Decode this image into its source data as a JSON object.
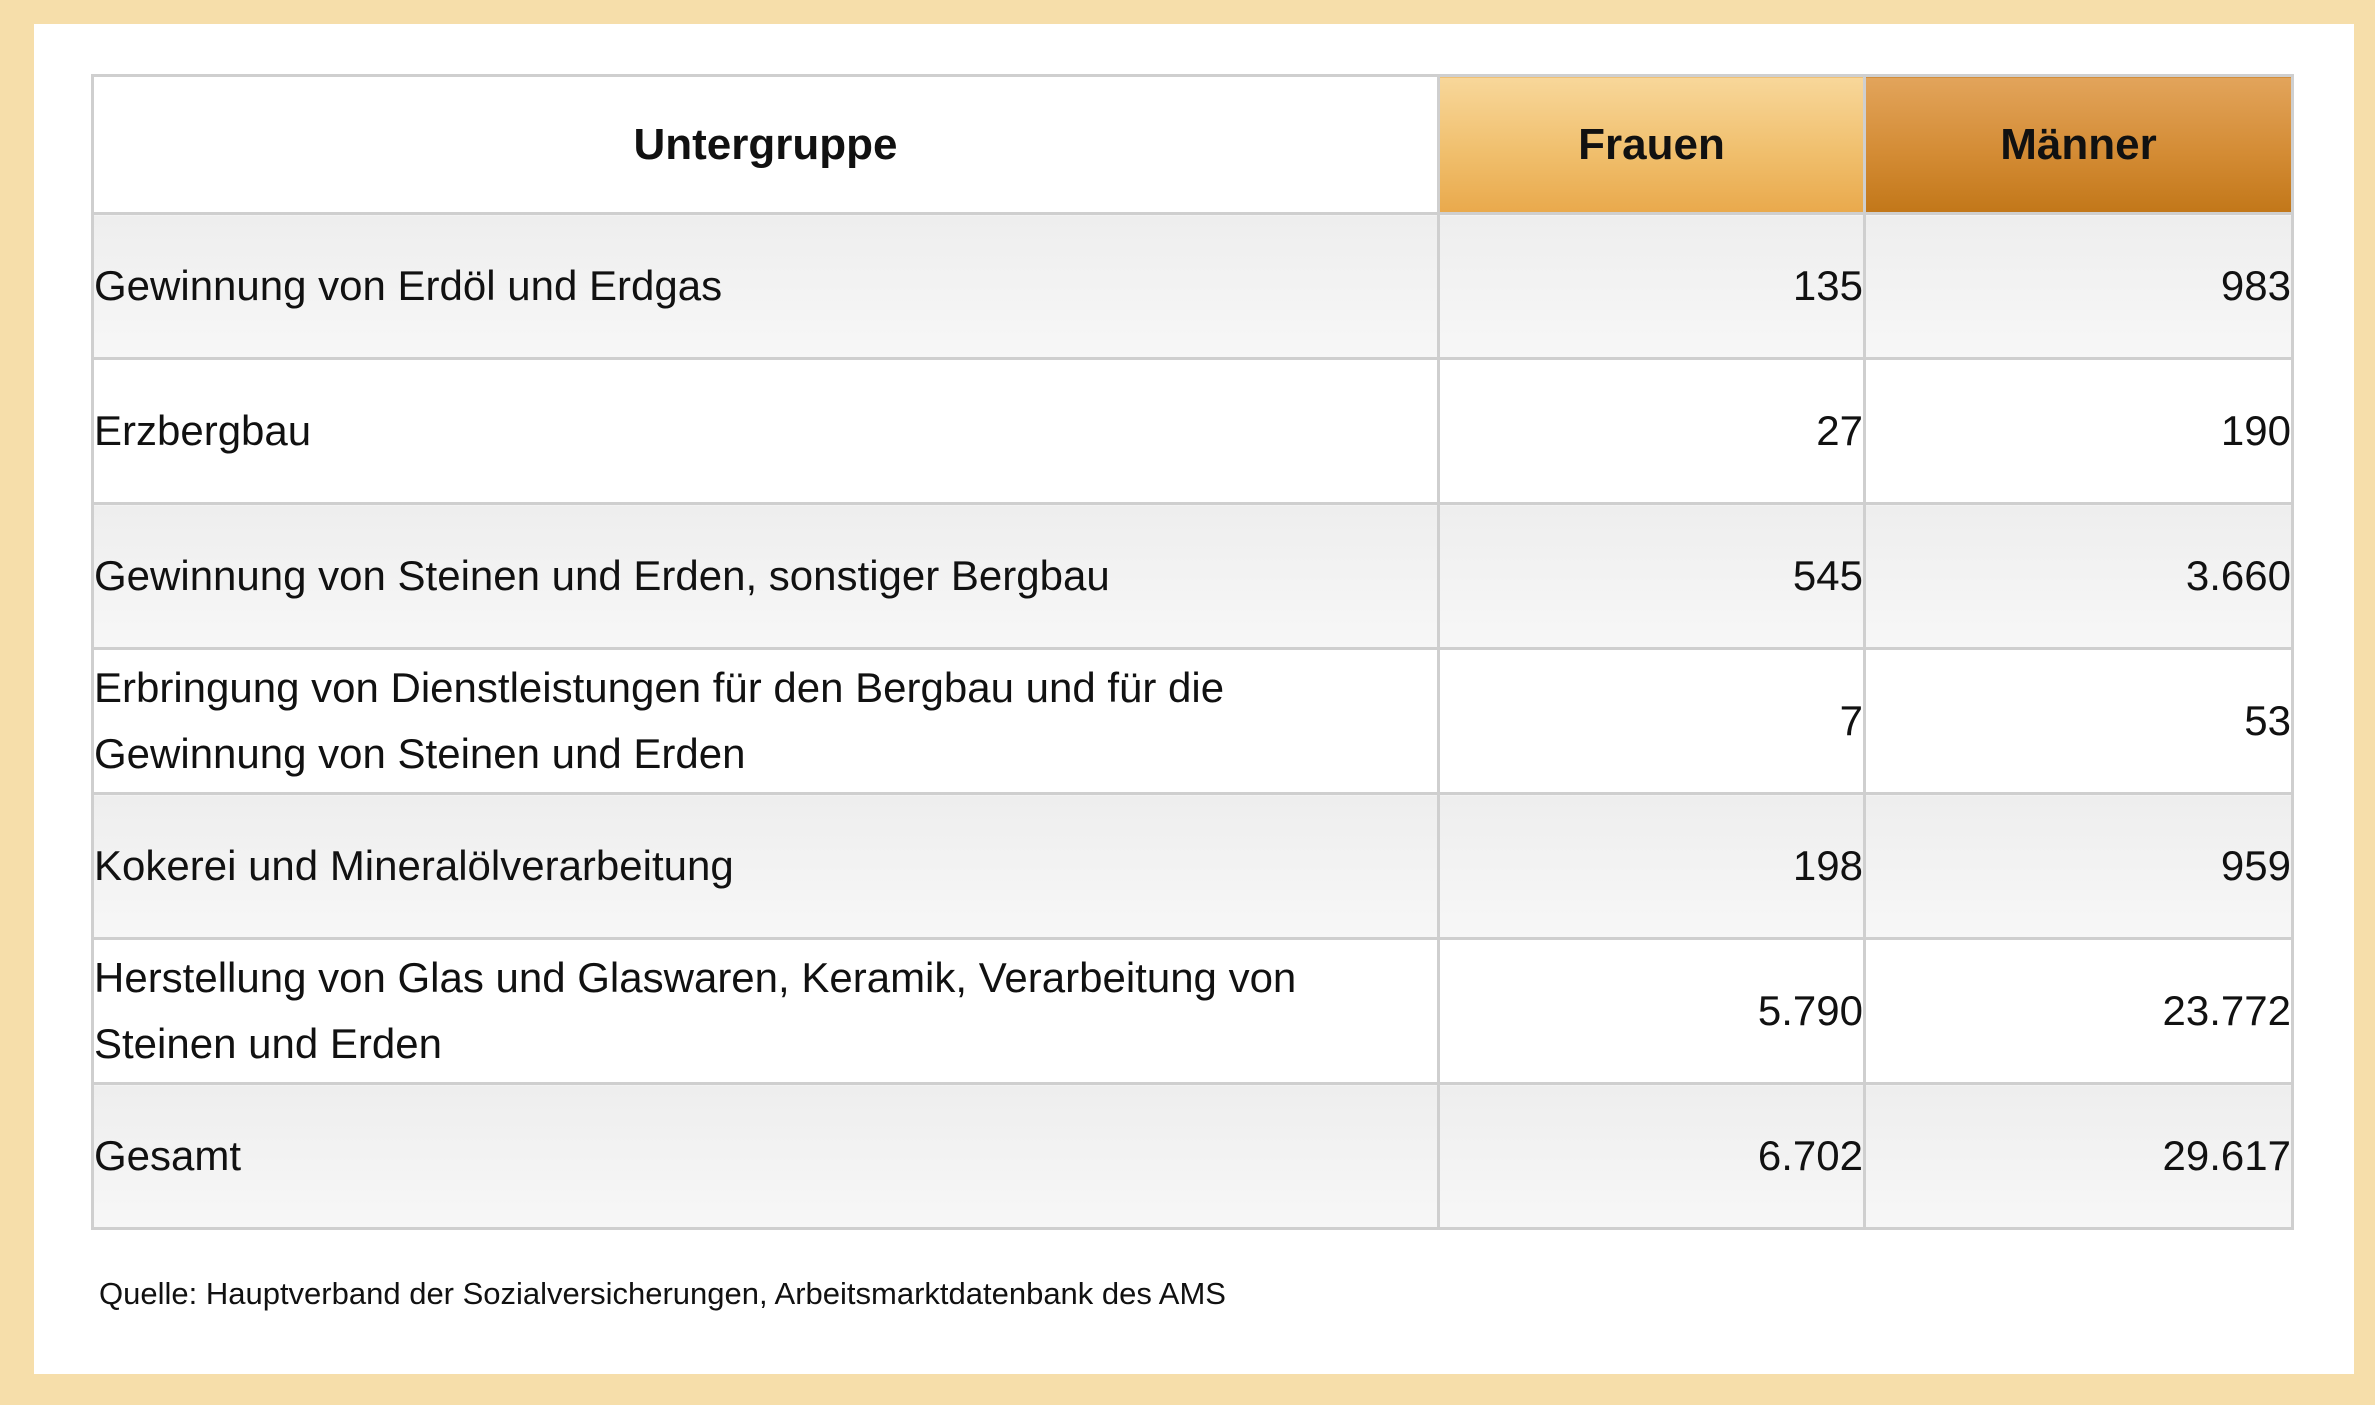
{
  "table": {
    "headers": {
      "label": "Untergruppe",
      "frauen": "Frauen",
      "maenner": "Männer"
    },
    "rows": [
      {
        "label": "Gewinnung von Erdöl und Erdgas",
        "frauen": "135",
        "maenner": "983"
      },
      {
        "label": "Erzbergbau",
        "frauen": "27",
        "maenner": "190"
      },
      {
        "label": "Gewinnung von Steinen und Erden, sonstiger Bergbau",
        "frauen": "545",
        "maenner": "3.660"
      },
      {
        "label": "Erbringung von Dienstleistungen für den Bergbau und für die Gewinnung von Steinen und Erden",
        "frauen": "7",
        "maenner": "53"
      },
      {
        "label": "Kokerei und Mineralölverarbeitung",
        "frauen": "198",
        "maenner": "959"
      },
      {
        "label": "Herstellung von Glas und Glaswaren, Keramik, Verarbeitung von Steinen und Erden",
        "frauen": "5.790",
        "maenner": "23.772"
      },
      {
        "label": "Gesamt",
        "frauen": "6.702",
        "maenner": "29.617"
      }
    ]
  },
  "source": "Quelle: Hauptverband der Sozialversicherungen, Arbeitsmarktdatenbank des AMS",
  "colors": {
    "background": "#f6deaa",
    "frauen_header": "#f0bf6d",
    "maenner_header": "#d48c35",
    "grid": "#cfcfcf"
  }
}
